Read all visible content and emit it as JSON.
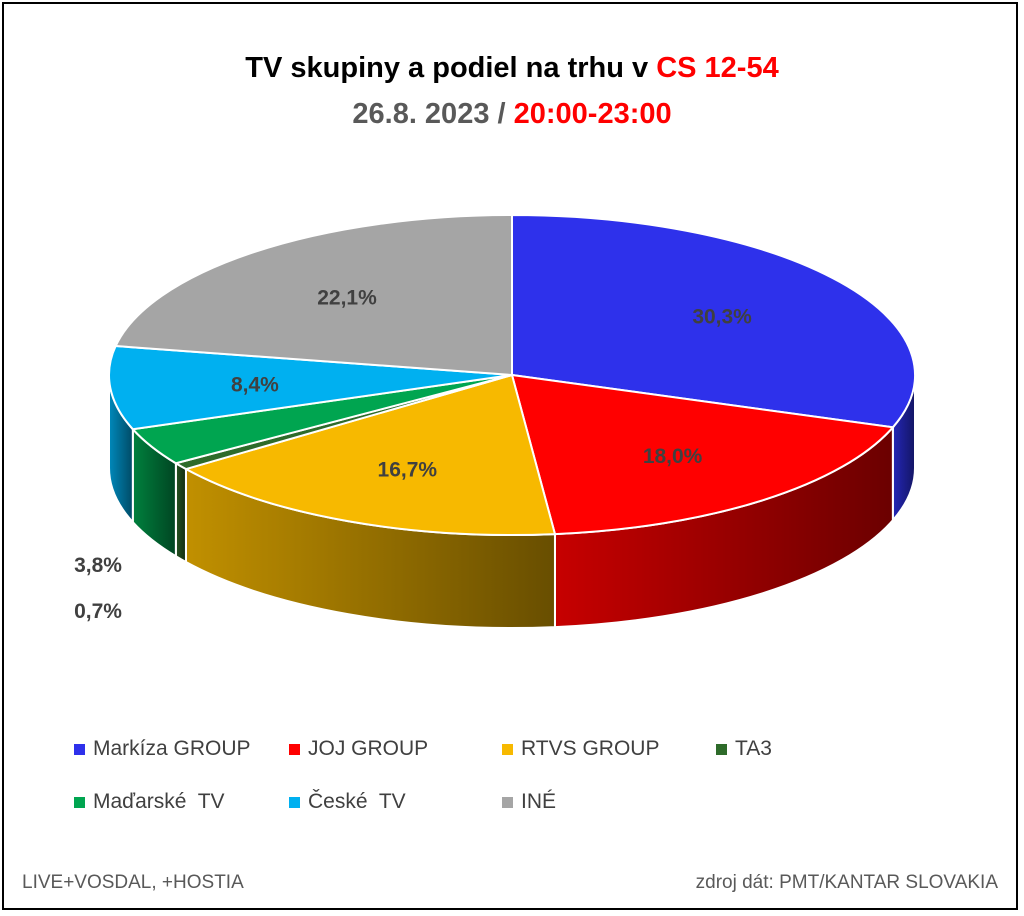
{
  "title": {
    "line1_prefix": "TV skupiny a podiel na trhu v ",
    "line1_highlight": "CS 12-54",
    "line2_prefix": "26.8. 2023 / ",
    "line2_highlight": "20:00-23:00"
  },
  "chart_data": {
    "type": "pie",
    "style": "3d",
    "categories": [
      "Markíza GROUP",
      "JOJ GROUP",
      "RTVS GROUP",
      "TA3",
      "Maďarské  TV",
      "České  TV",
      "INÉ"
    ],
    "values": [
      30.3,
      18.0,
      16.7,
      0.7,
      3.8,
      8.4,
      22.1
    ],
    "labels": [
      "30,3%",
      "18,0%",
      "16,7%",
      "0,7%",
      "3,8%",
      "8,4%",
      "22,1%"
    ],
    "colors": [
      "#2e31eb",
      "#ff0000",
      "#f7b900",
      "#2e6b2a",
      "#00a550",
      "#00b0f0",
      "#a5a5a5"
    ],
    "legend_position": "bottom"
  },
  "legend": [
    {
      "label": "Markíza GROUP",
      "color": "#2e31eb"
    },
    {
      "label": "JOJ GROUP",
      "color": "#ff0000"
    },
    {
      "label": "RTVS GROUP",
      "color": "#f7b900"
    },
    {
      "label": "TA3",
      "color": "#2e6b2a"
    },
    {
      "label": "Maďarské  TV",
      "color": "#00a550"
    },
    {
      "label": "České  TV",
      "color": "#00b0f0"
    },
    {
      "label": "INÉ",
      "color": "#a5a5a5"
    }
  ],
  "footer": {
    "left": "LIVE+VOSDAL, +HOSTIA",
    "right": "zdroj dát: PMT/KANTAR SLOVAKIA"
  }
}
